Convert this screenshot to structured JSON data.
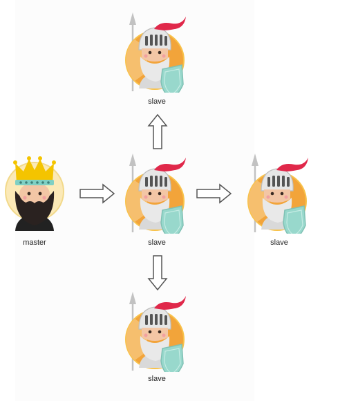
{
  "diagram": {
    "type": "master-slave topology",
    "colors": {
      "background": "#ffffff",
      "canvas": "#fcfcfc",
      "arrow_stroke": "#555555",
      "arrow_fill": "#ffffff",
      "king_circle": "#fbe9b7",
      "crown": "#f4c400",
      "beard": "#2a2220",
      "knight_circle": "#f2a43a",
      "helmet": "#e6e6e6",
      "plume": "#e0284a",
      "shield": "#98d8cc",
      "spear": "#c2c2c2"
    },
    "nodes": [
      {
        "id": "master",
        "label": "master",
        "icon": "king-icon"
      },
      {
        "id": "slave-top",
        "label": "slave",
        "icon": "knight-icon"
      },
      {
        "id": "slave-center",
        "label": "slave",
        "icon": "knight-icon"
      },
      {
        "id": "slave-right",
        "label": "slave",
        "icon": "knight-icon"
      },
      {
        "id": "slave-bottom",
        "label": "slave",
        "icon": "knight-icon"
      }
    ],
    "edges": [
      {
        "from": "master",
        "to": "slave-center",
        "direction": "right"
      },
      {
        "from": "slave-center",
        "to": "slave-top",
        "direction": "up"
      },
      {
        "from": "slave-center",
        "to": "slave-right",
        "direction": "right"
      },
      {
        "from": "slave-center",
        "to": "slave-bottom",
        "direction": "down"
      }
    ]
  }
}
